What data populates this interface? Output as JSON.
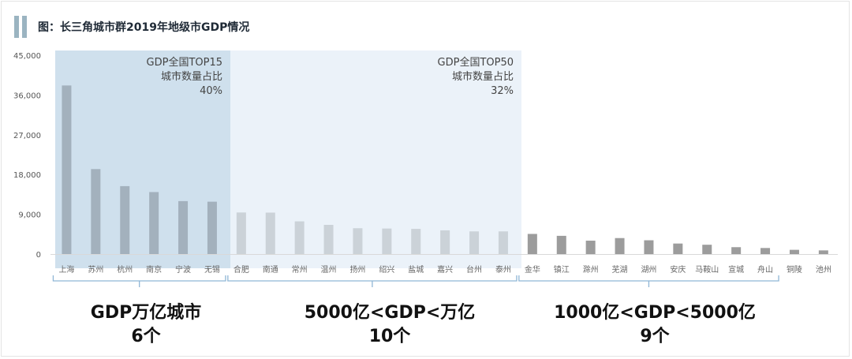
{
  "title": "图：长三角城市群2019年地级市GDP情况",
  "chart_data": {
    "type": "bar",
    "ylim": [
      0,
      45000
    ],
    "yticks": [
      "0",
      "9,000",
      "18,000",
      "27,000",
      "36,000",
      "45,000"
    ],
    "categories": [
      "上海",
      "苏州",
      "杭州",
      "南京",
      "宁波",
      "无锡",
      "合肥",
      "南通",
      "常州",
      "温州",
      "扬州",
      "绍兴",
      "盐城",
      "嘉兴",
      "台州",
      "泰州",
      "金华",
      "镇江",
      "滁州",
      "芜湖",
      "湖州",
      "安庆",
      "马鞍山",
      "宣城",
      "舟山",
      "铜陵",
      "池州"
    ],
    "values": [
      38155,
      19236,
      15373,
      14030,
      11985,
      11852,
      9409,
      9383,
      7401,
      6606,
      5850,
      5781,
      5702,
      5370,
      5134,
      5133,
      4560,
      4127,
      3032,
      3618,
      3122,
      2381,
      2111,
      1561,
      1372,
      961,
      831
    ],
    "zones": [
      {
        "lines": [
          "GDP全国TOP15",
          "城市数量占比",
          "40%"
        ]
      },
      {
        "lines": [
          "GDP全国TOP50",
          "城市数量占比",
          "32%"
        ]
      }
    ],
    "groups": [
      {
        "line1": "GDP万亿城市",
        "line2": "6个"
      },
      {
        "line1": "5000亿<GDP<万亿",
        "line2": "10个"
      },
      {
        "line1": "1000亿<GDP<5000亿",
        "line2": "9个"
      }
    ],
    "colors": {
      "zone1": "#cfe0ed",
      "zone2": "#ebf2f9",
      "bar_zone1": "#a3b1bd",
      "bar_zone2": "#cbd2d8",
      "bar_rest": "#9c9c9c",
      "bracket": "#8fb6d6"
    }
  }
}
